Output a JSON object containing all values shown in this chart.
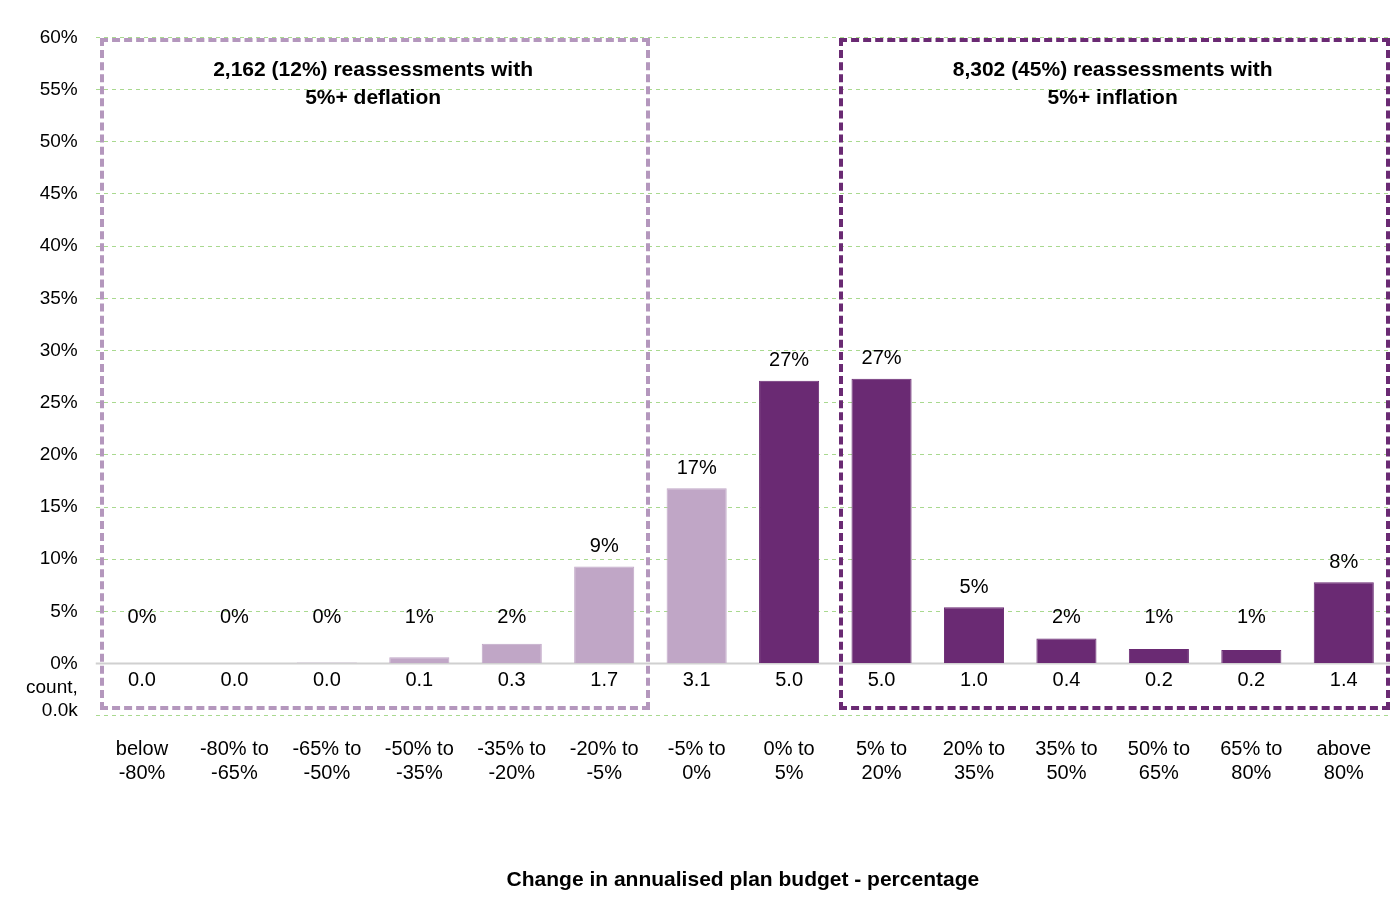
{
  "chart_data": {
    "type": "bar",
    "xlabel": "Change in annualised plan budget - percentage",
    "categories": [
      "below -80%",
      "-80% to -65%",
      "-65% to -50%",
      "-50% to -35%",
      "-35% to -20%",
      "-20% to -5%",
      "-5% to 0%",
      "0% to 5%",
      "5% to 20%",
      "20% to 35%",
      "35% to 50%",
      "50% to 65%",
      "65% to 80%",
      "above 80%"
    ],
    "values": [
      0,
      0.05,
      0.1,
      0.6,
      1.9,
      9.3,
      16.8,
      27.1,
      27.3,
      5.4,
      2.4,
      1.4,
      1.3,
      7.8
    ],
    "value_labels": [
      "0%",
      "0%",
      "0%",
      "1%",
      "2%",
      "9%",
      "17%",
      "27%",
      "27%",
      "5%",
      "2%",
      "1%",
      "1%",
      "8%"
    ],
    "colors": [
      "#c0a6c6",
      "#c0a6c6",
      "#c0a6c6",
      "#c0a6c6",
      "#c0a6c6",
      "#c0a6c6",
      "#c0a6c6",
      "#6a2a73",
      "#6a2a73",
      "#6a2a73",
      "#6a2a73",
      "#6a2a73",
      "#6a2a73",
      "#6a2a73"
    ],
    "ylim": [
      -5,
      60
    ],
    "yticks": [
      {
        "value": -5,
        "label": null
      },
      {
        "value": -3.4,
        "label": "count, 0.0k"
      },
      {
        "value": 0,
        "label": "0%"
      },
      {
        "value": 5,
        "label": "5%"
      },
      {
        "value": 10,
        "label": "10%"
      },
      {
        "value": 15,
        "label": "15%"
      },
      {
        "value": 20,
        "label": "20%"
      },
      {
        "value": 25,
        "label": "25%"
      },
      {
        "value": 30,
        "label": "30%"
      },
      {
        "value": 35,
        "label": "35%"
      },
      {
        "value": 40,
        "label": "40%"
      },
      {
        "value": 45,
        "label": "45%"
      },
      {
        "value": 50,
        "label": "50%"
      },
      {
        "value": 55,
        "label": "55%"
      },
      {
        "value": 60,
        "label": "60%"
      }
    ],
    "grid": "y",
    "legend": false,
    "annotations": [
      "2,162 (12%) reassessments with 5%+ deflation",
      "8,302 (45%) reassessments with 5%+ inflation",
      "0.0",
      "0.0",
      "0.0",
      "0.1",
      "0.3",
      "1.7",
      "3.1",
      "5.0",
      "5.0",
      "1.0",
      "0.4",
      "0.2",
      "0.2",
      "1.4"
    ]
  }
}
